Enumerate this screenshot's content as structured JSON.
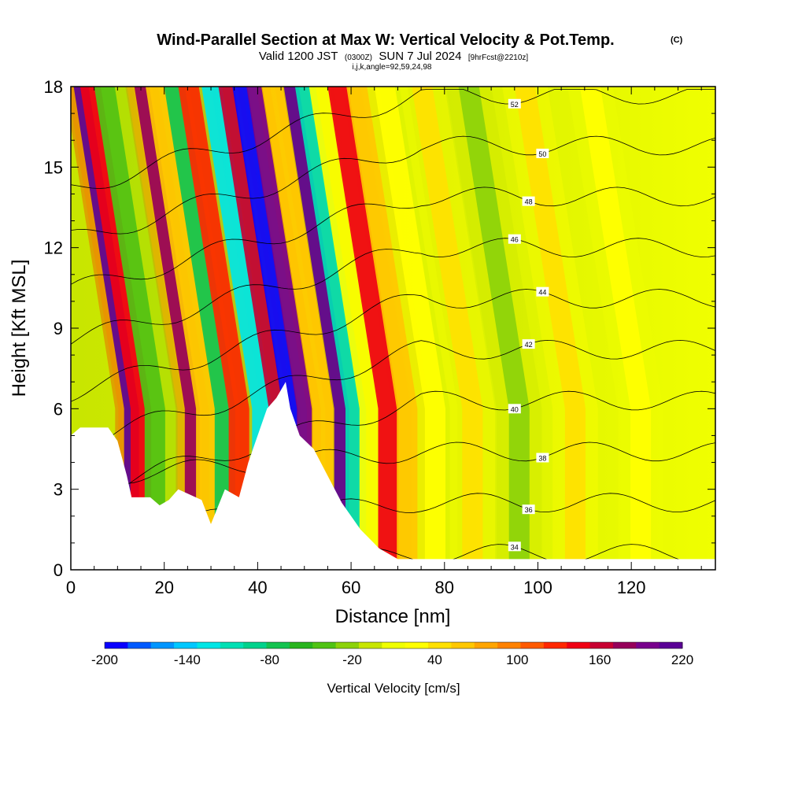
{
  "chart_data": {
    "type": "heatmap",
    "title": "Wind-Parallel Section at Max W: Vertical Velocity & Pot.Temp.",
    "title_mark": "(C)",
    "subtitle": {
      "valid": "Valid 1200 JST",
      "utc": "(0300Z)",
      "date": "SUN 7 Jul 2024",
      "forecast": "[9hrFcst@2210z]"
    },
    "indices": "i,j,k,angle=92,59,24,98",
    "xlabel": "Distance [nm]",
    "ylabel": "Height [Kft MSL]",
    "xlim": [
      0,
      138
    ],
    "ylim": [
      0,
      18
    ],
    "x_ticks": [
      "0",
      "20",
      "40",
      "60",
      "80",
      "100",
      "120"
    ],
    "y_ticks": [
      "0",
      "3",
      "6",
      "9",
      "12",
      "15",
      "18"
    ],
    "colorbar": {
      "label": "Vertical Velocity [cm/s]",
      "tick_labels": [
        "-200",
        "-140",
        "-80",
        "-20",
        "40",
        "100",
        "160",
        "220"
      ],
      "levels": [
        -200,
        220
      ],
      "colors": [
        "#0a00ff",
        "#005aff",
        "#0096ff",
        "#00c8ff",
        "#00e6e6",
        "#00e0b4",
        "#00d28c",
        "#14c350",
        "#28b41e",
        "#50c314",
        "#8cd20a",
        "#c8e600",
        "#f0ff00",
        "#ffff00",
        "#ffe100",
        "#ffc800",
        "#ffa500",
        "#ff8200",
        "#ff5a00",
        "#ff2800",
        "#f00014",
        "#c80032",
        "#96005a",
        "#78008c",
        "#5a0096"
      ]
    },
    "velocity_bands": [
      {
        "x": 13,
        "w": 220
      },
      {
        "x": 15,
        "w": 140
      },
      {
        "x": 18,
        "w": -40
      },
      {
        "x": 26,
        "w": 180
      },
      {
        "x": 29,
        "w": 60
      },
      {
        "x": 33,
        "w": -80
      },
      {
        "x": 36,
        "w": 120
      },
      {
        "x": 41,
        "w": -120
      },
      {
        "x": 44,
        "w": 160
      },
      {
        "x": 47,
        "w": -200
      },
      {
        "x": 50,
        "w": 200
      },
      {
        "x": 54,
        "w": 60
      },
      {
        "x": 58,
        "w": 220
      },
      {
        "x": 61,
        "w": -100
      },
      {
        "x": 64,
        "w": 20
      },
      {
        "x": 68,
        "w": 140
      },
      {
        "x": 72,
        "w": 60
      },
      {
        "x": 78,
        "w": 20
      },
      {
        "x": 86,
        "w": 40
      },
      {
        "x": 96,
        "w": -20
      },
      {
        "x": 108,
        "w": 40
      },
      {
        "x": 122,
        "w": 20
      }
    ],
    "terrain": [
      [
        0,
        5
      ],
      [
        2,
        5.3
      ],
      [
        8,
        5.3
      ],
      [
        10,
        4.8
      ],
      [
        12,
        3.5
      ],
      [
        13,
        2.7
      ],
      [
        17,
        2.7
      ],
      [
        19,
        2.4
      ],
      [
        21,
        2.6
      ],
      [
        23,
        3
      ],
      [
        28,
        2.6
      ],
      [
        30,
        1.7
      ],
      [
        33,
        3
      ],
      [
        36,
        2.7
      ],
      [
        38,
        4
      ],
      [
        40,
        5
      ],
      [
        42,
        6
      ],
      [
        44,
        6.4
      ],
      [
        46,
        7
      ],
      [
        47,
        6
      ],
      [
        49,
        5
      ],
      [
        52,
        4.5
      ],
      [
        55,
        3.5
      ],
      [
        58,
        2.5
      ],
      [
        62,
        1.5
      ],
      [
        66,
        0.8
      ],
      [
        70,
        0.4
      ],
      [
        138,
        0.4
      ]
    ],
    "theta_contours": [
      {
        "value": 34,
        "label": "34"
      },
      {
        "value": 36,
        "label": "36"
      },
      {
        "value": 38,
        "label": "38"
      },
      {
        "value": 40,
        "label": "40"
      },
      {
        "value": 42,
        "label": "42"
      },
      {
        "value": 44,
        "label": "44"
      },
      {
        "value": 46,
        "label": "46"
      },
      {
        "value": 48,
        "label": "48"
      },
      {
        "value": 50,
        "label": "50"
      },
      {
        "value": 52,
        "label": "52"
      }
    ]
  }
}
